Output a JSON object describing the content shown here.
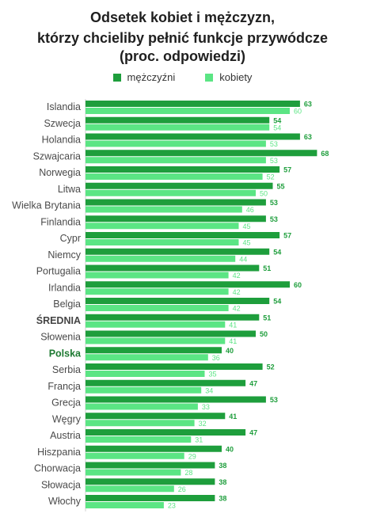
{
  "chart_data": {
    "type": "bar",
    "orientation": "horizontal",
    "title_lines": [
      "Odsetek kobiet i mężczyzn,",
      "którzy chcieliby pełnić funkcje przywódcze",
      "(proc. odpowiedzi)"
    ],
    "legend": [
      {
        "name": "mężczyźni",
        "color": "#1e9e3c"
      },
      {
        "name": "kobiety",
        "color": "#5be584"
      }
    ],
    "legend_position": "top",
    "categories": [
      "Islandia",
      "Szwecja",
      "Holandia",
      "Szwajcaria",
      "Norwegia",
      "Litwa",
      "Wielka Brytania",
      "Finlandia",
      "Cypr",
      "Niemcy",
      "Portugalia",
      "Irlandia",
      "Belgia",
      "ŚREDNIA",
      "Słowenia",
      "Polska",
      "Serbia",
      "Francja",
      "Grecja",
      "Węgry",
      "Austria",
      "Hiszpania",
      "Chorwacja",
      "Słowacja",
      "Włochy"
    ],
    "emphasized_categories": {
      "ŚREDNIA": "#444444",
      "Polska": "#1e7a32"
    },
    "series": [
      {
        "name": "mężczyźni",
        "color": "#1e9e3c",
        "values": [
          63,
          54,
          63,
          68,
          57,
          55,
          53,
          53,
          57,
          54,
          51,
          60,
          54,
          51,
          50,
          40,
          52,
          47,
          53,
          41,
          47,
          40,
          38,
          38,
          38
        ]
      },
      {
        "name": "kobiety",
        "color": "#5be584",
        "values": [
          60,
          54,
          53,
          53,
          52,
          50,
          46,
          45,
          45,
          44,
          42,
          42,
          42,
          41,
          41,
          36,
          35,
          34,
          33,
          32,
          31,
          29,
          28,
          26,
          23
        ]
      }
    ],
    "xlim": [
      0,
      68
    ],
    "grid": false
  }
}
